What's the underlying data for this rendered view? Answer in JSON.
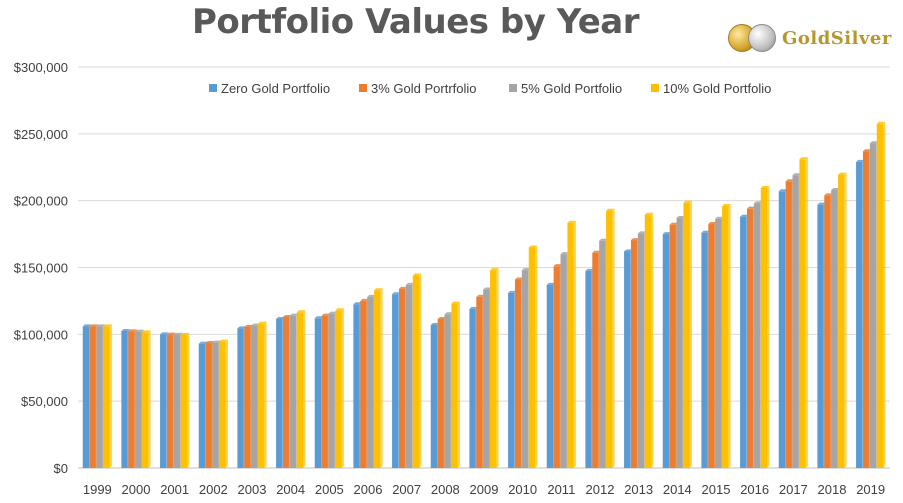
{
  "chart_data": {
    "type": "bar",
    "title": "Portfolio Values by Year",
    "categories": [
      "1999",
      "2000",
      "2001",
      "2002",
      "2003",
      "2004",
      "2005",
      "2006",
      "2007",
      "2008",
      "2009",
      "2010",
      "2011",
      "2012",
      "2013",
      "2014",
      "2015",
      "2016",
      "2017",
      "2018",
      "2019"
    ],
    "series": [
      {
        "name": "Zero Gold Portfolio",
        "color": "#5B9BD5",
        "values": [
          106000,
          102500,
          100000,
          93000,
          104500,
          111500,
          112000,
          122500,
          130000,
          107000,
          119000,
          131000,
          137000,
          147500,
          162000,
          175000,
          176000,
          188000,
          207000,
          197000,
          229000
        ]
      },
      {
        "name": "3% Gold Portrfolio",
        "color": "#ED7D31",
        "values": [
          106000,
          102200,
          99800,
          93500,
          105500,
          113000,
          114000,
          125000,
          134000,
          111500,
          128000,
          141000,
          151000,
          161000,
          170500,
          182000,
          182500,
          194000,
          214500,
          204000,
          237000
        ]
      },
      {
        "name": "5% Gold Portfolio",
        "color": "#A5A5A5",
        "values": [
          106000,
          102000,
          99700,
          93800,
          106500,
          114000,
          115500,
          128000,
          137000,
          115000,
          133500,
          148000,
          160000,
          170000,
          175500,
          187000,
          186500,
          198000,
          219000,
          208000,
          243000
        ]
      },
      {
        "name": "10% Gold Portfolio",
        "color": "#FFC000",
        "values": [
          106000,
          101500,
          99500,
          94500,
          108000,
          116500,
          118000,
          133000,
          144000,
          123000,
          148000,
          165000,
          183500,
          192500,
          189500,
          198500,
          196000,
          209500,
          231000,
          219500,
          257500
        ]
      }
    ],
    "y_tick_labels": [
      "$0",
      "$50,000",
      "$100,000",
      "$150,000",
      "$200,000",
      "$250,000",
      "$300,000"
    ],
    "ylim": [
      0,
      300000
    ],
    "grid": true,
    "legend_position": "top-center"
  },
  "logo": {
    "text": "GoldSilver"
  }
}
